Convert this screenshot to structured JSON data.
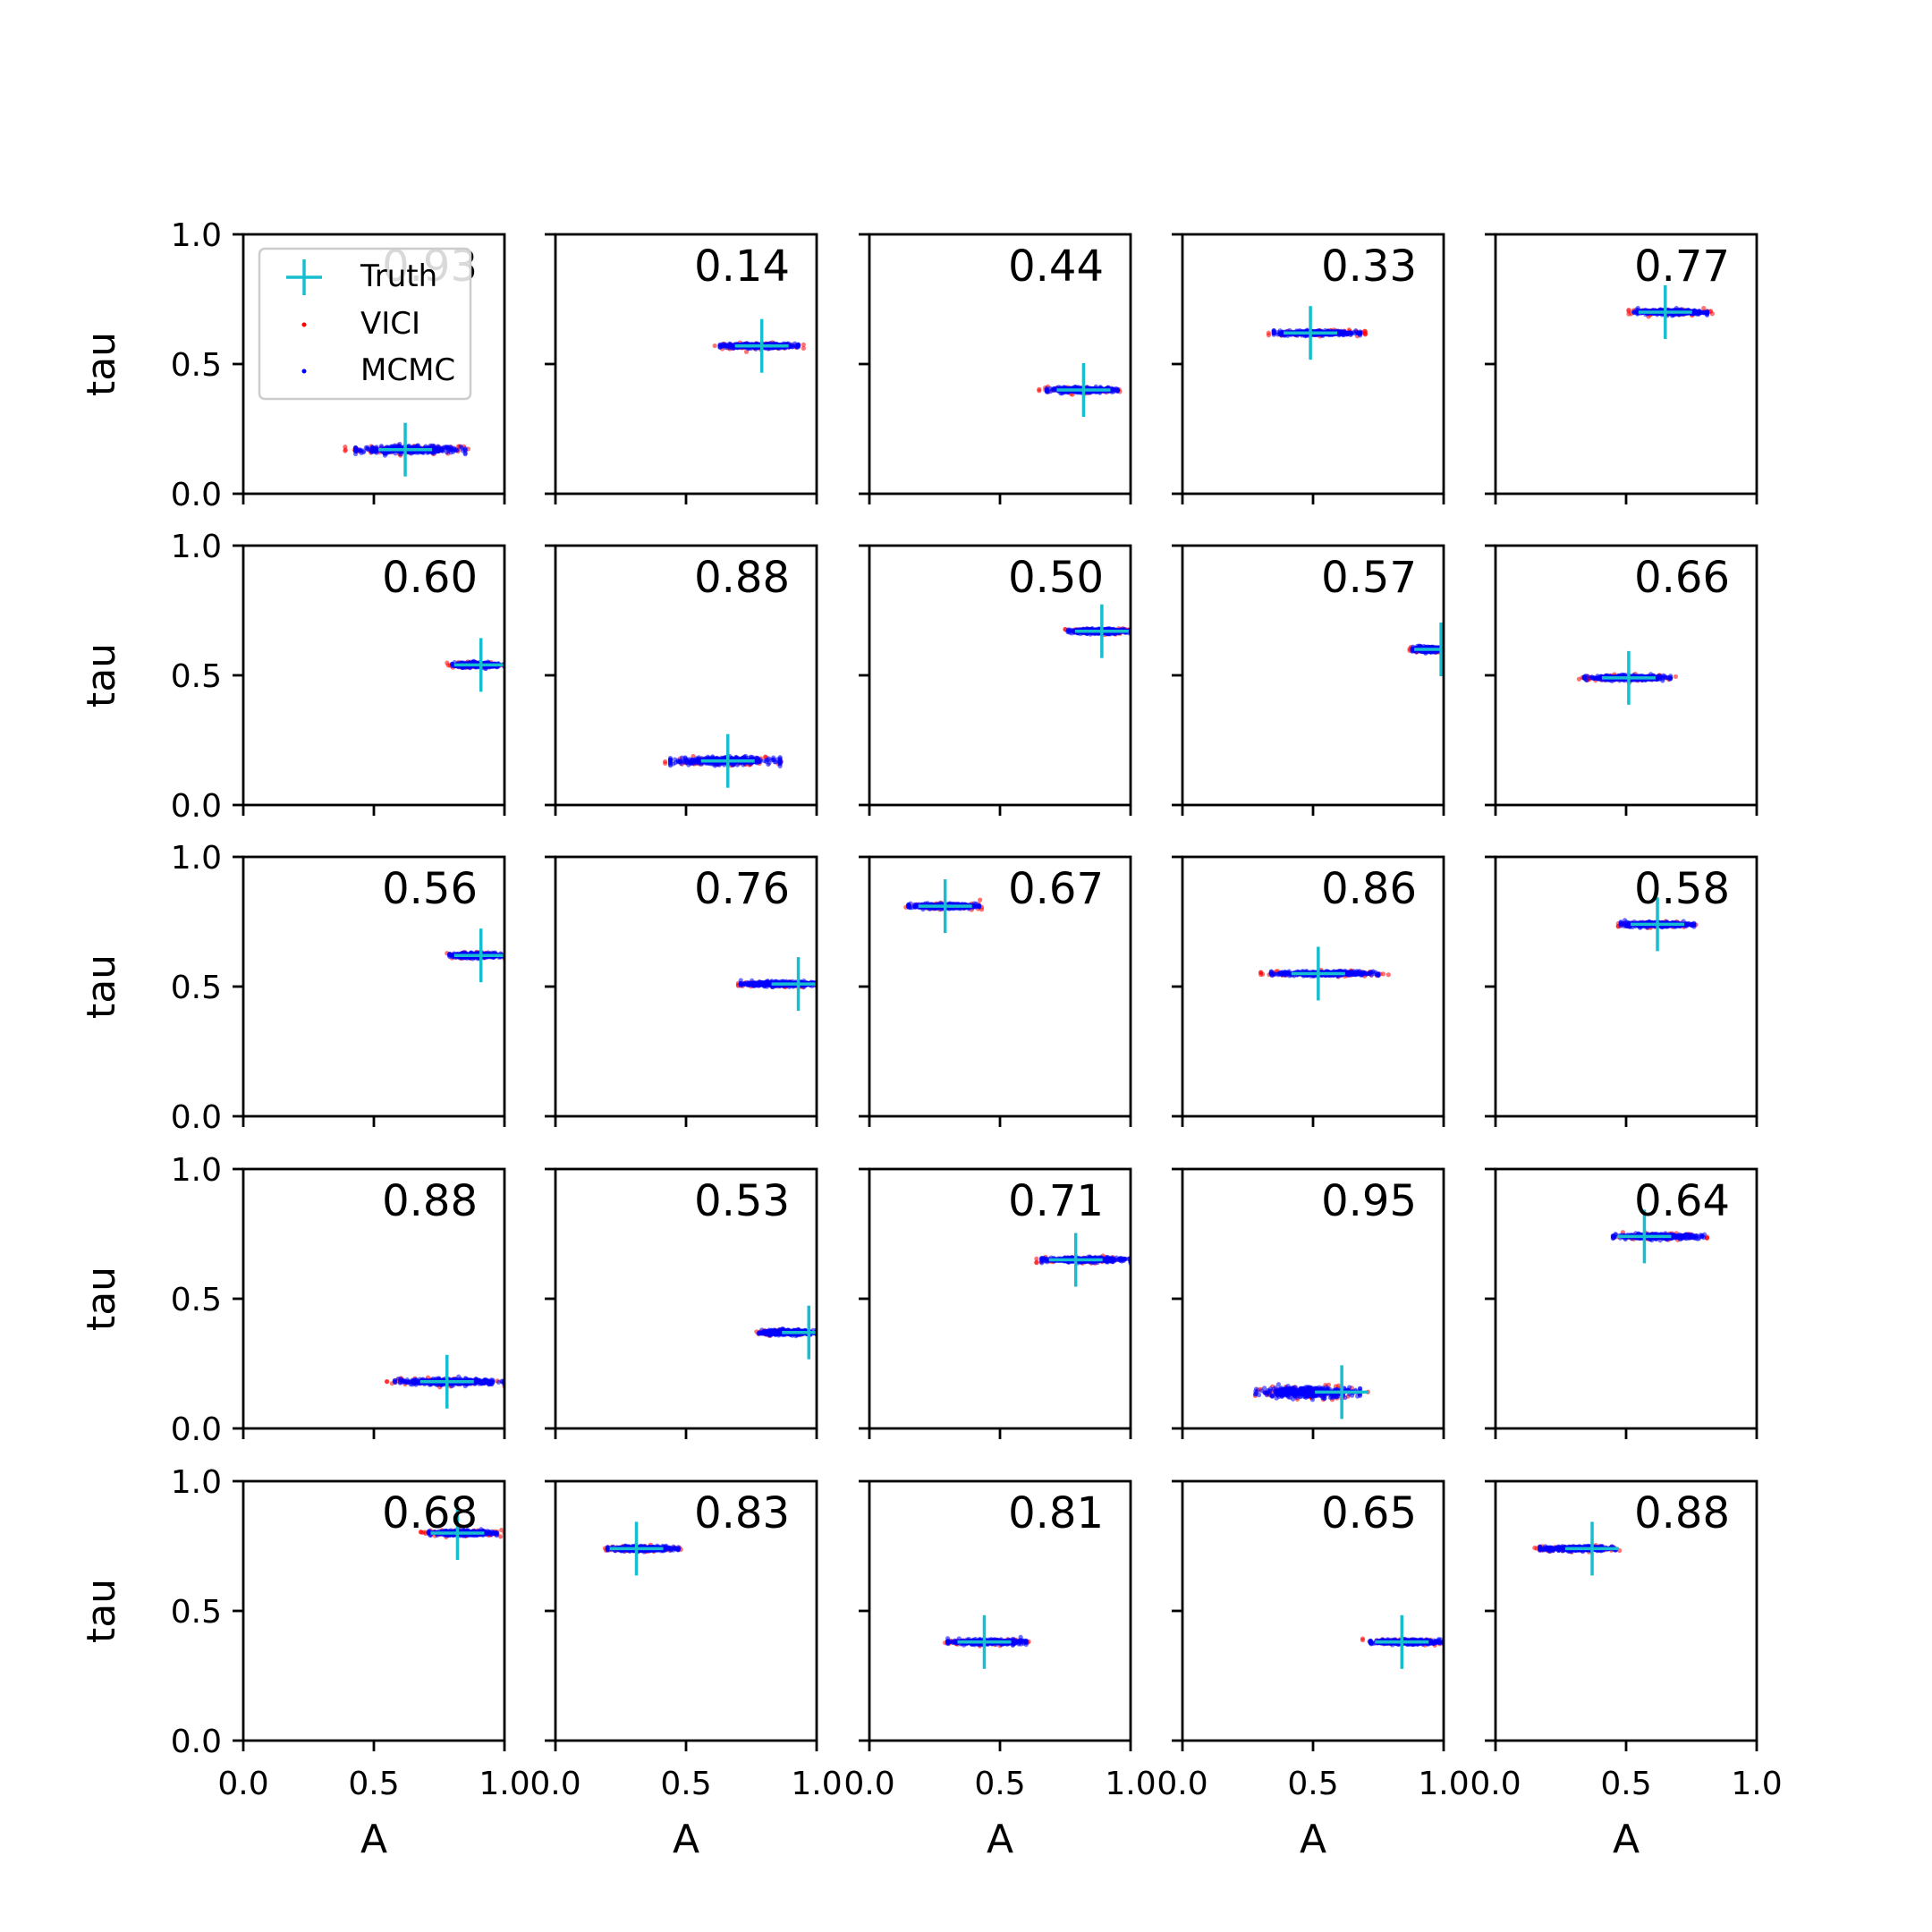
{
  "chart_data": {
    "type": "scatter",
    "grid": false,
    "legend_placement": "upper-left of first panel",
    "xlabel": "A",
    "ylabel": "tau",
    "xlim": [
      0,
      1
    ],
    "ylim": [
      0,
      1
    ],
    "xticks": [
      "0.0",
      "0.5",
      "1.0"
    ],
    "yticks": [
      "0.0",
      "0.5",
      "1.0"
    ],
    "rows": 5,
    "cols": 5,
    "legend": {
      "truth_label": "Truth",
      "vici_label": "VICI",
      "mcmc_label": "MCMC"
    },
    "colors": {
      "truth": "#17becf",
      "vici": "#ff0000",
      "mcmc": "#0000ff"
    },
    "panels": [
      {
        "score": "0.93",
        "truth_A": 0.62,
        "truth_tau": 0.17,
        "A_min": 0.43,
        "A_max": 0.85,
        "tau_spread": 0.012,
        "vici_ext": 0.04
      },
      {
        "score": "0.14",
        "truth_A": 0.79,
        "truth_tau": 0.57,
        "A_min": 0.63,
        "A_max": 0.93,
        "tau_spread": 0.008,
        "vici_ext": 0.02
      },
      {
        "score": "0.44",
        "truth_A": 0.82,
        "truth_tau": 0.4,
        "A_min": 0.68,
        "A_max": 0.95,
        "tau_spread": 0.008,
        "vici_ext": 0.03
      },
      {
        "score": "0.33",
        "truth_A": 0.49,
        "truth_tau": 0.62,
        "A_min": 0.35,
        "A_max": 0.68,
        "tau_spread": 0.008,
        "vici_ext": 0.02
      },
      {
        "score": "0.77",
        "truth_A": 0.65,
        "truth_tau": 0.7,
        "A_min": 0.53,
        "A_max": 0.81,
        "tau_spread": 0.008,
        "vici_ext": 0.02
      },
      {
        "score": "0.60",
        "truth_A": 0.91,
        "truth_tau": 0.54,
        "A_min": 0.8,
        "A_max": 1.0,
        "tau_spread": 0.008,
        "vici_ext": 0.02
      },
      {
        "score": "0.88",
        "truth_A": 0.66,
        "truth_tau": 0.17,
        "A_min": 0.44,
        "A_max": 0.86,
        "tau_spread": 0.012,
        "vici_ext": 0.02
      },
      {
        "score": "0.50",
        "truth_A": 0.89,
        "truth_tau": 0.67,
        "A_min": 0.76,
        "A_max": 1.0,
        "tau_spread": 0.008,
        "vici_ext": 0.01
      },
      {
        "score": "0.57",
        "truth_A": 0.99,
        "truth_tau": 0.6,
        "A_min": 0.88,
        "A_max": 1.0,
        "tau_spread": 0.008,
        "vici_ext": 0.01
      },
      {
        "score": "0.66",
        "truth_A": 0.51,
        "truth_tau": 0.49,
        "A_min": 0.34,
        "A_max": 0.67,
        "tau_spread": 0.008,
        "vici_ext": 0.02
      },
      {
        "score": "0.56",
        "truth_A": 0.91,
        "truth_tau": 0.62,
        "A_min": 0.79,
        "A_max": 1.0,
        "tau_spread": 0.008,
        "vici_ext": 0.01
      },
      {
        "score": "0.76",
        "truth_A": 0.93,
        "truth_tau": 0.51,
        "A_min": 0.71,
        "A_max": 1.0,
        "tau_spread": 0.008,
        "vici_ext": 0.01
      },
      {
        "score": "0.67",
        "truth_A": 0.29,
        "truth_tau": 0.81,
        "A_min": 0.15,
        "A_max": 0.42,
        "tau_spread": 0.008,
        "vici_ext": 0.01
      },
      {
        "score": "0.86",
        "truth_A": 0.52,
        "truth_tau": 0.55,
        "A_min": 0.34,
        "A_max": 0.75,
        "tau_spread": 0.008,
        "vici_ext": 0.04
      },
      {
        "score": "0.58",
        "truth_A": 0.62,
        "truth_tau": 0.74,
        "A_min": 0.48,
        "A_max": 0.76,
        "tau_spread": 0.008,
        "vici_ext": 0.01
      },
      {
        "score": "0.88",
        "truth_A": 0.78,
        "truth_tau": 0.18,
        "A_min": 0.58,
        "A_max": 1.0,
        "tau_spread": 0.01,
        "vici_ext": 0.03
      },
      {
        "score": "0.53",
        "truth_A": 0.97,
        "truth_tau": 0.37,
        "A_min": 0.78,
        "A_max": 1.0,
        "tau_spread": 0.008,
        "vici_ext": 0.01
      },
      {
        "score": "0.71",
        "truth_A": 0.79,
        "truth_tau": 0.65,
        "A_min": 0.66,
        "A_max": 1.0,
        "tau_spread": 0.008,
        "vici_ext": 0.02
      },
      {
        "score": "0.95",
        "truth_A": 0.61,
        "truth_tau": 0.14,
        "A_min": 0.28,
        "A_max": 0.68,
        "tau_spread": 0.018,
        "vici_ext": 0.03
      },
      {
        "score": "0.64",
        "truth_A": 0.57,
        "truth_tau": 0.74,
        "A_min": 0.45,
        "A_max": 0.8,
        "tau_spread": 0.008,
        "vici_ext": 0.01
      },
      {
        "score": "0.68",
        "truth_A": 0.82,
        "truth_tau": 0.8,
        "A_min": 0.71,
        "A_max": 0.97,
        "tau_spread": 0.008,
        "vici_ext": 0.03
      },
      {
        "score": "0.83",
        "truth_A": 0.31,
        "truth_tau": 0.74,
        "A_min": 0.2,
        "A_max": 0.47,
        "tau_spread": 0.008,
        "vici_ext": 0.01
      },
      {
        "score": "0.81",
        "truth_A": 0.44,
        "truth_tau": 0.38,
        "A_min": 0.3,
        "A_max": 0.6,
        "tau_spread": 0.008,
        "vici_ext": 0.01
      },
      {
        "score": "0.65",
        "truth_A": 0.84,
        "truth_tau": 0.38,
        "A_min": 0.72,
        "A_max": 1.0,
        "tau_spread": 0.008,
        "vici_ext": 0.03
      },
      {
        "score": "0.88",
        "truth_A": 0.37,
        "truth_tau": 0.74,
        "A_min": 0.17,
        "A_max": 0.46,
        "tau_spread": 0.008,
        "vici_ext": 0.02
      }
    ]
  }
}
